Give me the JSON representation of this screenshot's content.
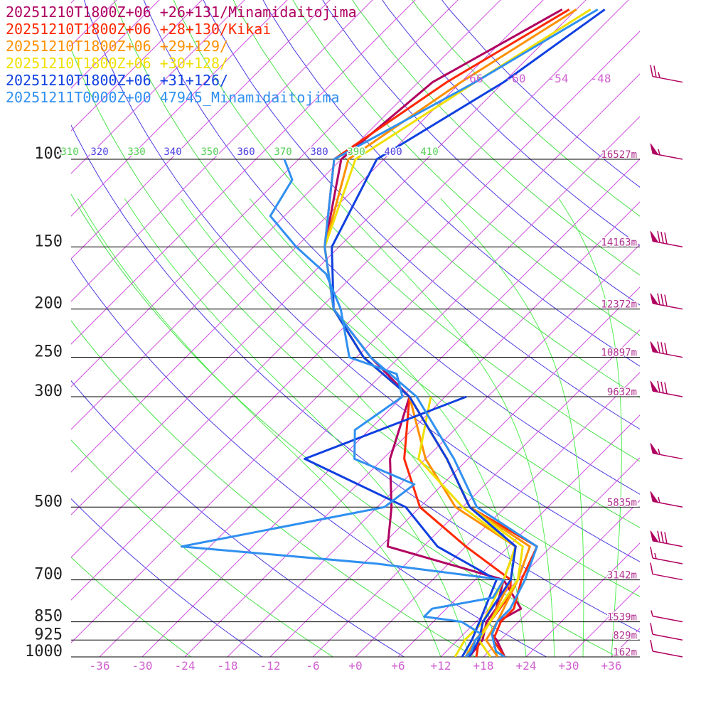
{
  "chart_data": {
    "type": "line",
    "diagram": "skew-T log-P sounding",
    "pressure_levels": [
      100,
      150,
      200,
      250,
      300,
      500,
      700,
      850,
      925,
      1000
    ],
    "pressure_labels": [
      "100",
      "150",
      "200",
      "250",
      "300",
      "500",
      "700",
      "850",
      "925",
      "1000"
    ],
    "height_labels": [
      {
        "p": 100,
        "text": "16527m"
      },
      {
        "p": 150,
        "text": "14163m"
      },
      {
        "p": 200,
        "text": "12372m"
      },
      {
        "p": 250,
        "text": "10897m"
      },
      {
        "p": 300,
        "text": "9632m"
      },
      {
        "p": 500,
        "text": "5835m"
      },
      {
        "p": 700,
        "text": "3142m"
      },
      {
        "p": 850,
        "text": "1539m"
      },
      {
        "p": 925,
        "text": "829m"
      },
      {
        "p": 1000,
        "text": "162m"
      }
    ],
    "temperature_ticks": [
      -36,
      -30,
      -24,
      -18,
      -12,
      -6,
      0,
      6,
      12,
      18,
      24,
      30,
      36
    ],
    "temperature_tick_labels": [
      "-36",
      "-30",
      "-24",
      "-18",
      "-12",
      "-6",
      "+0",
      "+6",
      "+12",
      "+18",
      "+24",
      "+30",
      "+36"
    ],
    "upper_temperature_labels": [
      "-66",
      "-60",
      "-54",
      "-48"
    ],
    "theta_labels": [
      "310",
      "320",
      "330",
      "340",
      "350",
      "360",
      "370",
      "380",
      "390",
      "400",
      "410"
    ],
    "legend": [
      "20251210T1800Z+06 +26+131/Minamidaitojima",
      "20251210T1800Z+06 +28+130/Kikai",
      "20251210T1800Z+06 +29+129/",
      "20251210T1800Z+06 +30+128/",
      "20251210T1800Z+06 +31+126/",
      "20251211T0000Z+00 47945_Minamidaitojima"
    ],
    "series": [
      {
        "color": "#b00060",
        "temperature": [
          [
            1000,
            21
          ],
          [
            925,
            17.5
          ],
          [
            900,
            16
          ],
          [
            850,
            15
          ],
          [
            800,
            16.5
          ],
          [
            700,
            10
          ],
          [
            600,
            7
          ],
          [
            500,
            -5
          ],
          [
            400,
            -15
          ],
          [
            300,
            -29
          ],
          [
            250,
            -40
          ],
          [
            200,
            -52
          ],
          [
            150,
            -62
          ],
          [
            100,
            -72
          ],
          [
            70,
            -70
          ],
          [
            50,
            -62
          ]
        ],
        "dewpoint": [
          [
            1000,
            16
          ],
          [
            925,
            15.5
          ],
          [
            850,
            13.5
          ],
          [
            800,
            13
          ],
          [
            700,
            10
          ],
          [
            600,
            -11
          ],
          [
            500,
            -16
          ],
          [
            400,
            -23
          ],
          [
            300,
            -29
          ]
        ]
      },
      {
        "color": "#ff2800",
        "temperature": [
          [
            1000,
            21
          ],
          [
            925,
            17
          ],
          [
            850,
            15.5
          ],
          [
            800,
            15.5
          ],
          [
            700,
            12.5
          ],
          [
            600,
            10
          ],
          [
            500,
            -5
          ],
          [
            400,
            -15
          ],
          [
            300,
            -29
          ],
          [
            250,
            -41
          ],
          [
            200,
            -52
          ],
          [
            150,
            -62
          ],
          [
            100,
            -73
          ],
          [
            70,
            -68
          ],
          [
            50,
            -61
          ]
        ],
        "dewpoint": [
          [
            1000,
            17
          ],
          [
            925,
            15
          ],
          [
            850,
            14
          ],
          [
            750,
            13
          ],
          [
            700,
            11
          ],
          [
            600,
            0
          ],
          [
            500,
            -12
          ],
          [
            400,
            -21
          ],
          [
            300,
            -29
          ]
        ]
      },
      {
        "color": "#ff9000",
        "temperature": [
          [
            1000,
            20
          ],
          [
            925,
            16
          ],
          [
            850,
            15
          ],
          [
            700,
            12
          ],
          [
            600,
            9
          ],
          [
            500,
            -5
          ],
          [
            400,
            -15
          ],
          [
            300,
            -29
          ],
          [
            250,
            -41
          ],
          [
            200,
            -52
          ],
          [
            150,
            -62
          ],
          [
            100,
            -71
          ],
          [
            70,
            -66
          ],
          [
            50,
            -60
          ]
        ],
        "dewpoint": [
          [
            1000,
            15.5
          ],
          [
            925,
            14.5
          ],
          [
            850,
            14
          ],
          [
            700,
            11
          ],
          [
            600,
            7
          ],
          [
            500,
            -7
          ],
          [
            400,
            -18
          ],
          [
            300,
            -29
          ]
        ]
      },
      {
        "color": "#f0e000",
        "temperature": [
          [
            1000,
            19
          ],
          [
            925,
            15
          ],
          [
            850,
            14
          ],
          [
            700,
            12
          ],
          [
            600,
            8
          ],
          [
            500,
            -5
          ],
          [
            400,
            -15
          ],
          [
            300,
            -29
          ],
          [
            250,
            -41
          ],
          [
            200,
            -52
          ],
          [
            150,
            -62
          ],
          [
            100,
            -70
          ],
          [
            70,
            -64
          ],
          [
            50,
            -58
          ]
        ],
        "dewpoint": [
          [
            1000,
            14
          ],
          [
            925,
            13
          ],
          [
            850,
            13
          ],
          [
            700,
            10
          ],
          [
            600,
            7
          ],
          [
            500,
            -6
          ],
          [
            400,
            -19
          ],
          [
            300,
            -26
          ]
        ]
      },
      {
        "color": "#1040e0",
        "temperature": [
          [
            1000,
            16
          ],
          [
            925,
            15
          ],
          [
            850,
            13
          ],
          [
            700,
            11
          ],
          [
            600,
            7
          ],
          [
            500,
            -5
          ],
          [
            400,
            -15
          ],
          [
            300,
            -29
          ],
          [
            250,
            -41
          ],
          [
            200,
            -52
          ],
          [
            150,
            -61
          ],
          [
            100,
            -67
          ],
          [
            70,
            -60
          ],
          [
            50,
            -56
          ]
        ],
        "dewpoint": [
          [
            1000,
            15
          ],
          [
            925,
            14
          ],
          [
            850,
            12.5
          ],
          [
            700,
            9
          ],
          [
            600,
            -4
          ],
          [
            500,
            -14
          ],
          [
            400,
            -35
          ],
          [
            300,
            -21
          ]
        ]
      },
      {
        "color": "#3090f0",
        "temperature": [
          [
            1000,
            21
          ],
          [
            975,
            19
          ],
          [
            925,
            17
          ],
          [
            900,
            16
          ],
          [
            850,
            15
          ],
          [
            800,
            15
          ],
          [
            700,
            13
          ],
          [
            600,
            10
          ],
          [
            500,
            -4
          ],
          [
            400,
            -14
          ],
          [
            300,
            -28
          ],
          [
            250,
            -40
          ],
          [
            200,
            -52
          ],
          [
            150,
            -62
          ],
          [
            100,
            -73
          ],
          [
            70,
            -64
          ],
          [
            50,
            -57
          ]
        ],
        "dewpoint": [
          [
            1000,
            15.5
          ],
          [
            975,
            15.5
          ],
          [
            925,
            14.5
          ],
          [
            900,
            14.5
          ],
          [
            850,
            10
          ],
          [
            830,
            4
          ],
          [
            800,
            4
          ],
          [
            760,
            11
          ],
          [
            700,
            10
          ],
          [
            650,
            -10
          ],
          [
            600,
            -40
          ],
          [
            500,
            -17
          ],
          [
            450,
            -16
          ],
          [
            400,
            -28
          ],
          [
            350,
            -32
          ],
          [
            300,
            -30
          ],
          [
            270,
            -34
          ],
          [
            250,
            -43
          ],
          [
            200,
            -51
          ],
          [
            170,
            -58
          ],
          [
            150,
            -66
          ],
          [
            130,
            -74
          ],
          [
            110,
            -76
          ],
          [
            100,
            -80
          ]
        ]
      }
    ],
    "wind_barbs": [
      {
        "p": 70,
        "knots": 25
      },
      {
        "p": 100,
        "knots": 55
      },
      {
        "p": 150,
        "knots": 80
      },
      {
        "p": 200,
        "knots": 80
      },
      {
        "p": 250,
        "knots": 80
      },
      {
        "p": 300,
        "knots": 80
      },
      {
        "p": 400,
        "knots": 55
      },
      {
        "p": 500,
        "knots": 55
      },
      {
        "p": 600,
        "knots": 80
      },
      {
        "p": 650,
        "knots": 15
      },
      {
        "p": 700,
        "knots": 10
      },
      {
        "p": 850,
        "knots": 5
      },
      {
        "p": 925,
        "knots": 10
      },
      {
        "p": 1000,
        "knots": 10
      }
    ],
    "grid": true
  }
}
